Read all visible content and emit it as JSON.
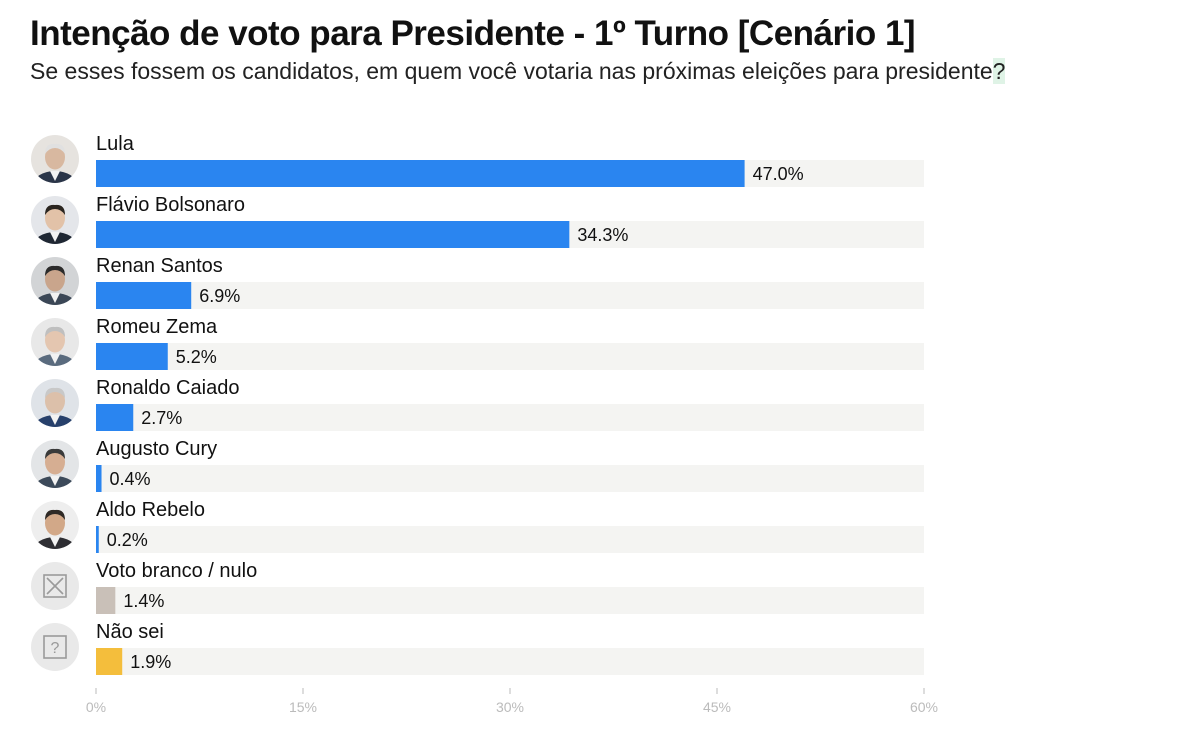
{
  "title": "Intenção de voto para Presidente - 1º Turno [Cenário 1]",
  "subtitle_main": "Se esses fossem os candidatos, em quem você votaria nas próximas eleições para presidente",
  "subtitle_end": "?",
  "colors": {
    "candidate": "#2a85f0",
    "blank": "#c9c0b8",
    "unknown": "#f4be3c",
    "track": "#f4f4f2",
    "tick": "#bbbbbb"
  },
  "chart_data": {
    "type": "bar",
    "orientation": "horizontal",
    "categories": [
      "Lula",
      "Flávio Bolsonaro",
      "Renan Santos",
      "Romeu Zema",
      "Ronaldo Caiado",
      "Augusto Cury",
      "Aldo Rebelo",
      "Voto branco / nulo",
      "Não sei"
    ],
    "values": [
      47.0,
      34.3,
      6.9,
      5.2,
      2.7,
      0.4,
      0.2,
      1.4,
      1.9
    ],
    "value_labels": [
      "47.0%",
      "34.3%",
      "6.9%",
      "5.2%",
      "2.7%",
      "0.4%",
      "0.2%",
      "1.4%",
      "1.9%"
    ],
    "bar_colors": [
      "candidate",
      "candidate",
      "candidate",
      "candidate",
      "candidate",
      "candidate",
      "candidate",
      "blank",
      "unknown"
    ],
    "avatar_icons": [
      "avatar-icon",
      "avatar-icon",
      "avatar-icon",
      "avatar-icon",
      "avatar-icon",
      "avatar-icon",
      "avatar-icon",
      "x-box-icon",
      "question-box-icon"
    ],
    "xlim": [
      0,
      60
    ],
    "xticks": [
      0,
      15,
      30,
      45,
      60
    ],
    "xtick_labels": [
      "0%",
      "15%",
      "30%",
      "45%",
      "60%"
    ],
    "grid": false,
    "legend": "none"
  }
}
